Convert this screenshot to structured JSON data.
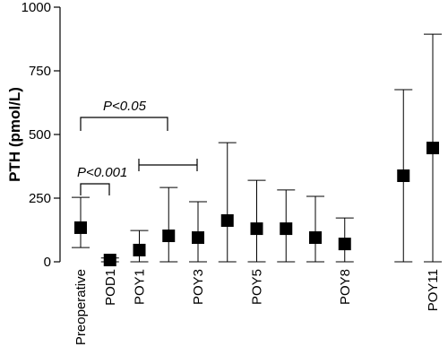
{
  "chart_data": {
    "type": "errorbar",
    "y_label": "PTH (pmol/L)",
    "categories": [
      "Preoperative",
      "POD1",
      "POY1",
      null,
      "POY3",
      null,
      "POY5",
      null,
      null,
      "POY8",
      null,
      null,
      "POY11"
    ],
    "series": [
      {
        "color": "#000000",
        "values": [
          134,
          7,
          46,
          102,
          95,
          162,
          130,
          130,
          95,
          70,
          null,
          338,
          447
        ],
        "lower": [
          56,
          0,
          0,
          0,
          0,
          0,
          0,
          0,
          0,
          0,
          null,
          0,
          0
        ],
        "upper": [
          253,
          15,
          123,
          292,
          236,
          468,
          320,
          282,
          257,
          172,
          null,
          676,
          894
        ]
      }
    ],
    "ylim": [
      0,
      1000
    ],
    "yticks": [
      0,
      250,
      500,
      750,
      1000
    ],
    "annotations": [
      "P<0.05",
      "P<0.001"
    ]
  }
}
